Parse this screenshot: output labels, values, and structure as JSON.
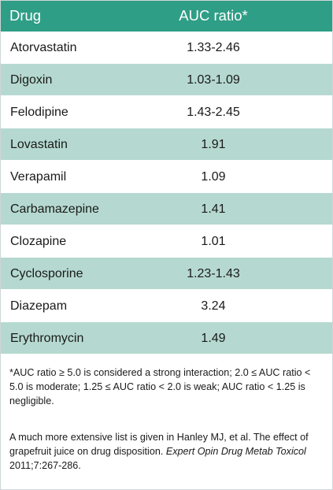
{
  "table": {
    "headers": {
      "drug": "Drug",
      "auc": "AUC ratio*"
    },
    "rows": [
      {
        "drug": "Atorvastatin",
        "auc": "1.33-2.46"
      },
      {
        "drug": "Digoxin",
        "auc": "1.03-1.09"
      },
      {
        "drug": "Felodipine",
        "auc": "1.43-2.45"
      },
      {
        "drug": "Lovastatin",
        "auc": "1.91"
      },
      {
        "drug": "Verapamil",
        "auc": "1.09"
      },
      {
        "drug": "Carbamazepine",
        "auc": "1.41"
      },
      {
        "drug": "Clozapine",
        "auc": "1.01"
      },
      {
        "drug": "Cyclosporine",
        "auc": "1.23-1.43"
      },
      {
        "drug": "Diazepam",
        "auc": "3.24"
      },
      {
        "drug": "Erythromycin",
        "auc": "1.49"
      }
    ]
  },
  "footnote": "*AUC ratio ≥ 5.0 is considered a strong interaction; 2.0 ≤ AUC ratio < 5.0 is moderate; 1.25 ≤ AUC ratio < 2.0 is weak; AUC ratio < 1.25 is negligible.",
  "reference": {
    "text": "A much more extensive list is given in Hanley MJ, et al. The effect of grapefruit juice on drug disposition.",
    "journal": "Expert Opin Drug Metab Toxicol",
    "citation": "2011;7:267-286."
  },
  "colors": {
    "header_bg": "#2f9e86",
    "row_shade": "#b5d9d0"
  }
}
